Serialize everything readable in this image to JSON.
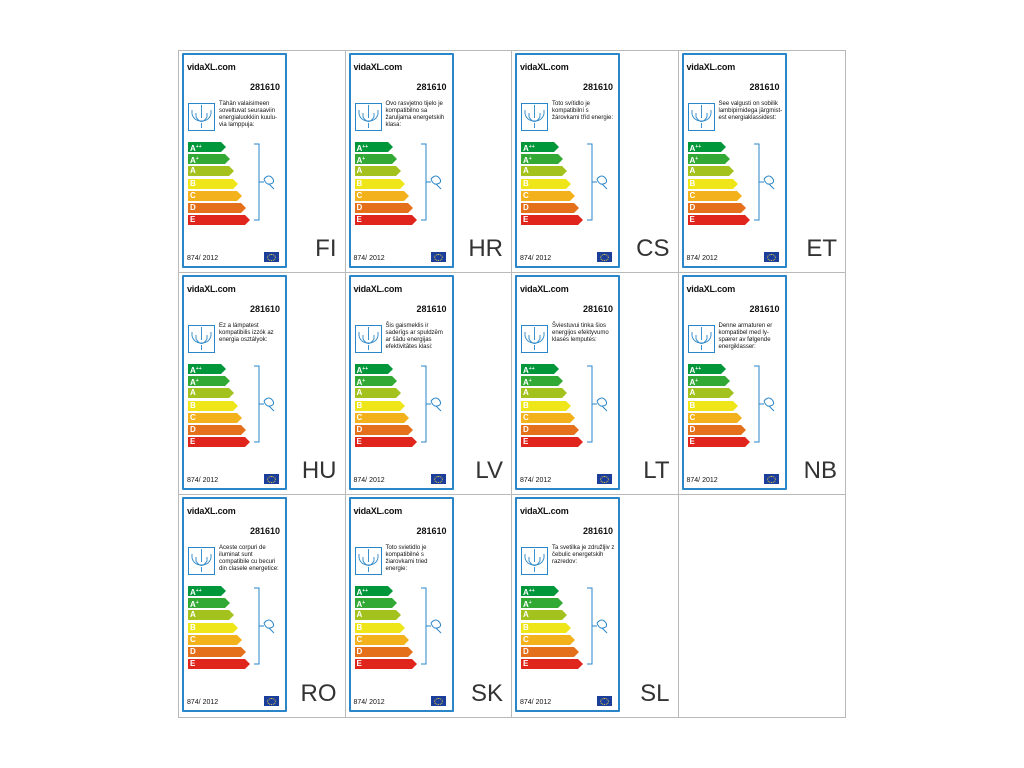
{
  "labels": [
    {
      "lang": "FI",
      "code": "281610",
      "brand": "vidaXL.com",
      "text": "Tähän valaisimeen soveltuvat seuraaviin energialuokkiin kuulu-via lamppuja:",
      "regulation": "874/ 2012"
    },
    {
      "lang": "HR",
      "code": "281610",
      "brand": "vidaXL.com",
      "text": "Ovo rasvjetno tijelo je kompatibilno sa žaruljama energetskih klasa:",
      "regulation": "874/ 2012"
    },
    {
      "lang": "CS",
      "code": "281610",
      "brand": "vidaXL.com",
      "text": "Toto svítidlo je kompatibilní s žárovkami tříd energie:",
      "regulation": "874/ 2012"
    },
    {
      "lang": "ET",
      "code": "281610",
      "brand": "vidaXL.com",
      "text": "See valgusti on sobilik lambipirnidega järgmist-est energiaklassidest:",
      "regulation": "874/ 2012"
    },
    {
      "lang": "HU",
      "code": "281610",
      "brand": "vidaXL.com",
      "text": "Ez a lámpatest kompatibilis izzók az energia osztályok:",
      "regulation": "874/ 2012"
    },
    {
      "lang": "LV",
      "code": "281610",
      "brand": "vidaXL.com",
      "text": "Šis gaismeklis ir saderīgs ar spuldzēm ar šādu energijas efektivitātes klasi:",
      "regulation": "874/ 2012"
    },
    {
      "lang": "LT",
      "code": "281610",
      "brand": "vidaXL.com",
      "text": "Šviestuvui tinka šios energijos efektyvumo klasės lemputės:",
      "regulation": "874/ 2012"
    },
    {
      "lang": "NB",
      "code": "281610",
      "brand": "vidaXL.com",
      "text": "Denne armaturen er kompatibel med ly-spærer av følgende energiklasser:",
      "regulation": "874/ 2012"
    },
    {
      "lang": "RO",
      "code": "281610",
      "brand": "vidaXL.com",
      "text": "Aceste corpuri de iluminat sunt compatibile cu becuri din clasele energetice:",
      "regulation": "874/ 2012"
    },
    {
      "lang": "SK",
      "code": "281610",
      "brand": "vidaXL.com",
      "text": "Toto svietidlo je kompatibilné s žiarovkami tried energie:",
      "regulation": "874/ 2012"
    },
    {
      "lang": "SL",
      "code": "281610",
      "brand": "vidaXL.com",
      "text": "Ta svetilka je združljiv z čebulic energetskih razredov:",
      "regulation": "874/ 2012"
    }
  ],
  "energy_classes": [
    {
      "letter": "A",
      "sup": "++",
      "color": "#00963a",
      "width": 33
    },
    {
      "letter": "A",
      "sup": "+",
      "color": "#32a935",
      "width": 37
    },
    {
      "letter": "A",
      "sup": "",
      "color": "#a3c21d",
      "width": 41
    },
    {
      "letter": "B",
      "sup": "",
      "color": "#eee619",
      "width": 45
    },
    {
      "letter": "C",
      "sup": "",
      "color": "#f3b11b",
      "width": 49
    },
    {
      "letter": "D",
      "sup": "",
      "color": "#e5701b",
      "width": 53
    },
    {
      "letter": "E",
      "sup": "",
      "color": "#e0251c",
      "width": 57
    }
  ],
  "colors": {
    "border": "#2a86c8",
    "grid": "#b9b9b9"
  }
}
